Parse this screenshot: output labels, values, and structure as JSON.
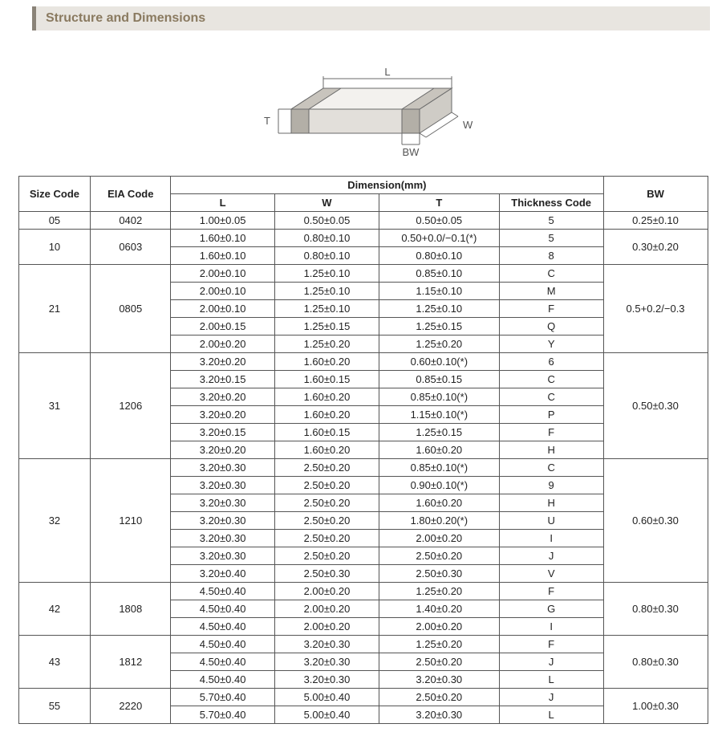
{
  "header": {
    "title": "Structure and Dimensions"
  },
  "diagram": {
    "labels": {
      "L": "L",
      "W": "W",
      "T": "T",
      "BW": "BW"
    },
    "stroke": "#6a6a6a",
    "fill_top": "#f3f1ee",
    "fill_front": "#e2dfda",
    "fill_side": "#cfccc6",
    "fill_cap_top": "#c8c4bd",
    "fill_cap_front": "#b3afa7",
    "fill_cap_side": "#9e9a92"
  },
  "table": {
    "headers": {
      "size": "Size Code",
      "eia": "EIA Code",
      "dim": "Dimension(mm)",
      "L": "L",
      "W": "W",
      "T": "T",
      "TC": "Thickness Code",
      "BW": "BW"
    },
    "groups": [
      {
        "size": "05",
        "eia": "0402",
        "bw": "0.25±0.10",
        "rows": [
          {
            "L": "1.00±0.05",
            "W": "0.50±0.05",
            "T": "0.50±0.05",
            "TC": "5"
          }
        ]
      },
      {
        "size": "10",
        "eia": "0603",
        "bw": "0.30±0.20",
        "rows": [
          {
            "L": "1.60±0.10",
            "W": "0.80±0.10",
            "T": "0.50+0.0/−0.1(*)",
            "TC": "5"
          },
          {
            "L": "1.60±0.10",
            "W": "0.80±0.10",
            "T": "0.80±0.10",
            "TC": "8"
          }
        ]
      },
      {
        "size": "21",
        "eia": "0805",
        "bw": "0.5+0.2/−0.3",
        "rows": [
          {
            "L": "2.00±0.10",
            "W": "1.25±0.10",
            "T": "0.85±0.10",
            "TC": "C"
          },
          {
            "L": "2.00±0.10",
            "W": "1.25±0.10",
            "T": "1.15±0.10",
            "TC": "M"
          },
          {
            "L": "2.00±0.10",
            "W": "1.25±0.10",
            "T": "1.25±0.10",
            "TC": "F"
          },
          {
            "L": "2.00±0.15",
            "W": "1.25±0.15",
            "T": "1.25±0.15",
            "TC": "Q"
          },
          {
            "L": "2.00±0.20",
            "W": "1.25±0.20",
            "T": "1.25±0.20",
            "TC": "Y"
          }
        ]
      },
      {
        "size": "31",
        "eia": "1206",
        "bw": "0.50±0.30",
        "rows": [
          {
            "L": "3.20±0.20",
            "W": "1.60±0.20",
            "T": "0.60±0.10(*)",
            "TC": "6"
          },
          {
            "L": "3.20±0.15",
            "W": "1.60±0.15",
            "T": "0.85±0.15",
            "TC": "C"
          },
          {
            "L": "3.20±0.20",
            "W": "1.60±0.20",
            "T": "0.85±0.10(*)",
            "TC": "C"
          },
          {
            "L": "3.20±0.20",
            "W": "1.60±0.20",
            "T": "1.15±0.10(*)",
            "TC": "P"
          },
          {
            "L": "3.20±0.15",
            "W": "1.60±0.15",
            "T": "1.25±0.15",
            "TC": "F"
          },
          {
            "L": "3.20±0.20",
            "W": "1.60±0.20",
            "T": "1.60±0.20",
            "TC": "H"
          }
        ]
      },
      {
        "size": "32",
        "eia": "1210",
        "bw": "0.60±0.30",
        "rows": [
          {
            "L": "3.20±0.30",
            "W": "2.50±0.20",
            "T": "0.85±0.10(*)",
            "TC": "C"
          },
          {
            "L": "3.20±0.30",
            "W": "2.50±0.20",
            "T": "0.90±0.10(*)",
            "TC": "9"
          },
          {
            "L": "3.20±0.30",
            "W": "2.50±0.20",
            "T": "1.60±0.20",
            "TC": "H"
          },
          {
            "L": "3.20±0.30",
            "W": "2.50±0.20",
            "T": "1.80±0.20(*)",
            "TC": "U"
          },
          {
            "L": "3.20±0.30",
            "W": "2.50±0.20",
            "T": "2.00±0.20",
            "TC": "I"
          },
          {
            "L": "3.20±0.30",
            "W": "2.50±0.20",
            "T": "2.50±0.20",
            "TC": "J"
          },
          {
            "L": "3.20±0.40",
            "W": "2.50±0.30",
            "T": "2.50±0.30",
            "TC": "V"
          }
        ]
      },
      {
        "size": "42",
        "eia": "1808",
        "bw": "0.80±0.30",
        "rows": [
          {
            "L": "4.50±0.40",
            "W": "2.00±0.20",
            "T": "1.25±0.20",
            "TC": "F"
          },
          {
            "L": "4.50±0.40",
            "W": "2.00±0.20",
            "T": "1.40±0.20",
            "TC": "G"
          },
          {
            "L": "4.50±0.40",
            "W": "2.00±0.20",
            "T": "2.00±0.20",
            "TC": "I"
          }
        ]
      },
      {
        "size": "43",
        "eia": "1812",
        "bw": "0.80±0.30",
        "rows": [
          {
            "L": "4.50±0.40",
            "W": "3.20±0.30",
            "T": "1.25±0.20",
            "TC": "F"
          },
          {
            "L": "4.50±0.40",
            "W": "3.20±0.30",
            "T": "2.50±0.20",
            "TC": "J"
          },
          {
            "L": "4.50±0.40",
            "W": "3.20±0.30",
            "T": "3.20±0.30",
            "TC": "L"
          }
        ]
      },
      {
        "size": "55",
        "eia": "2220",
        "bw": "1.00±0.30",
        "rows": [
          {
            "L": "5.70±0.40",
            "W": "5.00±0.40",
            "T": "2.50±0.20",
            "TC": "J"
          },
          {
            "L": "5.70±0.40",
            "W": "5.00±0.40",
            "T": "3.20±0.30",
            "TC": "L"
          }
        ]
      }
    ]
  }
}
